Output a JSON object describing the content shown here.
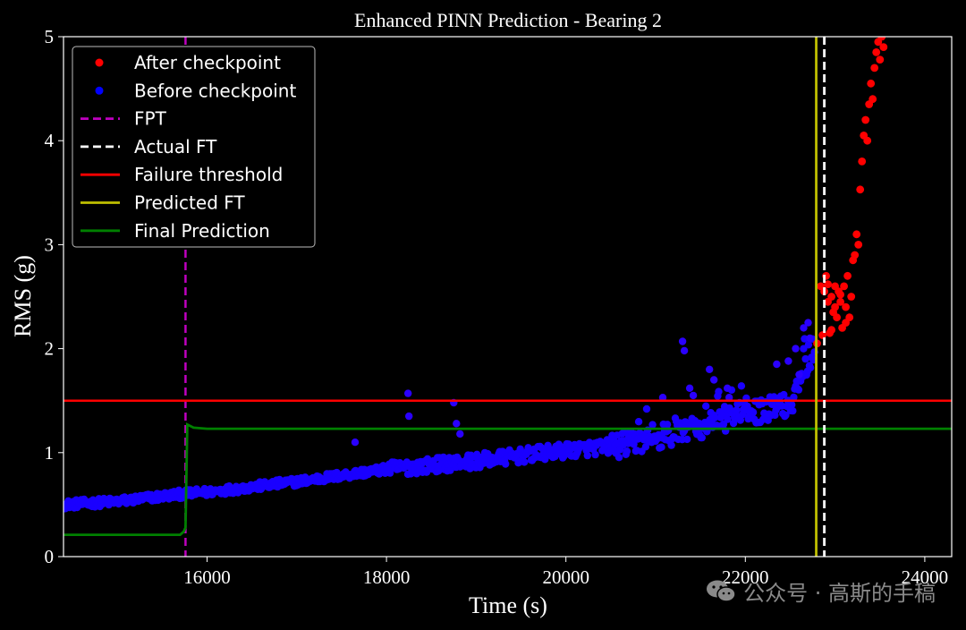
{
  "chart_data": {
    "type": "scatter",
    "title": "Enhanced PINN Prediction - Bearing 2",
    "xlabel": "Time (s)",
    "ylabel": "RMS (g)",
    "xlim": [
      14400,
      24300
    ],
    "ylim": [
      0,
      5
    ],
    "xticks": [
      "16000",
      "18000",
      "20000",
      "22000",
      "24000"
    ],
    "yticks": [
      "0",
      "1",
      "2",
      "3",
      "4",
      "5"
    ],
    "legend_position": "upper-left",
    "legend": [
      {
        "label": "After checkpoint",
        "kind": "dot",
        "color": "#ff0000"
      },
      {
        "label": "Before checkpoint",
        "kind": "dot",
        "color": "#0000ff"
      },
      {
        "label": "FPT",
        "kind": "dash",
        "color": "#bf00bf"
      },
      {
        "label": "Actual FT",
        "kind": "dash",
        "color": "#ffffff"
      },
      {
        "label": "Failure threshold",
        "kind": "line",
        "color": "#ff0000"
      },
      {
        "label": "Predicted FT",
        "kind": "line",
        "color": "#bfbf00"
      },
      {
        "label": "Final Prediction",
        "kind": "line",
        "color": "#008000"
      }
    ],
    "reference_lines": {
      "fpt_x": 15760,
      "actual_ft_x": 22880,
      "predicted_ft_x": 22790,
      "failure_threshold_y": 1.5
    },
    "final_prediction": {
      "x": [
        14400,
        15700,
        15740,
        15760,
        15780,
        15850,
        16000,
        24300
      ],
      "y": [
        0.21,
        0.21,
        0.24,
        0.28,
        1.27,
        1.24,
        1.23,
        1.23
      ]
    },
    "before_checkpoint_trend": {
      "x": [
        14400,
        15000,
        15700,
        16000,
        17000,
        18000,
        19000,
        20000,
        20500,
        21000,
        21500,
        22000,
        22500,
        22780
      ],
      "y": [
        0.5,
        0.53,
        0.6,
        0.62,
        0.72,
        0.84,
        0.92,
        1.02,
        1.06,
        1.12,
        1.26,
        1.38,
        1.46,
        2.05
      ]
    },
    "before_checkpoint_outliers": {
      "x": [
        17650,
        18240,
        18250,
        18750,
        18780,
        18820,
        21080,
        21300,
        21320,
        21380,
        21420,
        21600,
        21650,
        21800,
        21820,
        22350,
        22480,
        22560,
        22600,
        22650,
        22700,
        22720
      ],
      "y": [
        1.1,
        1.57,
        1.35,
        1.48,
        1.28,
        1.18,
        1.53,
        2.07,
        1.98,
        1.62,
        1.55,
        1.8,
        1.7,
        1.62,
        1.53,
        1.85,
        1.88,
        2.0,
        1.75,
        2.2,
        2.25,
        2.1
      ]
    },
    "after_checkpoint": {
      "x": [
        22800,
        22840,
        22880,
        22900,
        22920,
        22940,
        22960,
        22980,
        23000,
        23020,
        23040,
        23060,
        23080,
        23100,
        23120,
        23140,
        23160,
        23180,
        23200,
        23220,
        23240,
        23260,
        23280,
        23300,
        23320,
        23340,
        23360,
        23380,
        23400,
        23420,
        23440,
        23460,
        23480,
        23500,
        23520,
        23540,
        22860,
        22920,
        22960,
        23000,
        23060,
        23120
      ],
      "y": [
        2.05,
        2.6,
        2.55,
        2.7,
        2.45,
        2.15,
        2.5,
        2.35,
        2.6,
        2.3,
        2.55,
        2.45,
        2.2,
        2.6,
        2.4,
        2.7,
        2.3,
        2.5,
        2.85,
        2.9,
        3.1,
        3.0,
        3.53,
        3.8,
        4.05,
        4.2,
        4.0,
        4.35,
        4.55,
        4.4,
        4.7,
        4.85,
        4.95,
        4.78,
        5.0,
        4.9,
        2.13,
        2.62,
        2.18,
        2.4,
        2.52,
        2.25
      ]
    }
  },
  "watermark": {
    "text": "公众号 · 高斯的手稿",
    "icon": "wechat-icon"
  }
}
